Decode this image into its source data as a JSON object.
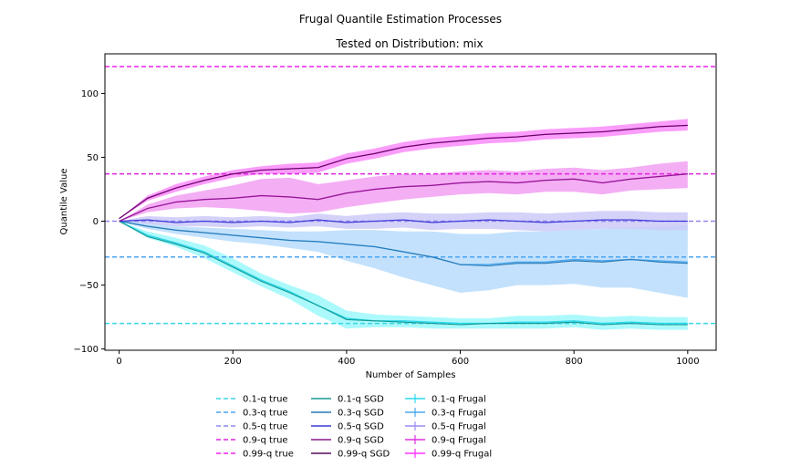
{
  "chart_data": {
    "type": "line",
    "title": "Frugal Quantile Estimation Processes",
    "subtitle": "Tested on Distribution: mix",
    "xlabel": "Number of Samples",
    "ylabel": "Quantile Value",
    "xlim": [
      -25,
      1050
    ],
    "ylim": [
      -101,
      131
    ],
    "xticks": [
      0,
      200,
      400,
      600,
      800,
      1000
    ],
    "yticks": [
      -100,
      -50,
      0,
      50,
      100
    ],
    "grid": false,
    "legend_position": "bottom-center",
    "true_lines": [
      {
        "name": "0.1-q true",
        "value": -80,
        "color": "#3ad6e6"
      },
      {
        "name": "0.3-q true",
        "value": -28,
        "color": "#4ba3ef"
      },
      {
        "name": "0.5-q true",
        "value": 0,
        "color": "#8f88ee"
      },
      {
        "name": "0.9-q true",
        "value": 37,
        "color": "#e022e0"
      },
      {
        "name": "0.99-q true",
        "value": 121,
        "color": "#ee22ee"
      }
    ],
    "sgd_series": [
      {
        "name": "0.1-q SGD",
        "color": "#159a94",
        "x": [
          0,
          50,
          100,
          150,
          200,
          250,
          300,
          350,
          400,
          450,
          500,
          550,
          600,
          650,
          700,
          750,
          800,
          850,
          900,
          950,
          1000
        ],
        "y": [
          0,
          -12,
          -18,
          -25,
          -36,
          -47,
          -56,
          -66,
          -77,
          -78,
          -79,
          -80,
          -81,
          -80,
          -80,
          -80,
          -79,
          -81,
          -80,
          -81,
          -81
        ]
      },
      {
        "name": "0.3-q SGD",
        "color": "#2a7ab5",
        "x": [
          0,
          50,
          100,
          150,
          200,
          250,
          300,
          350,
          400,
          450,
          500,
          550,
          600,
          650,
          700,
          750,
          800,
          850,
          900,
          950,
          1000
        ],
        "y": [
          0,
          -4,
          -7,
          -9,
          -11,
          -13,
          -15,
          -16,
          -18,
          -20,
          -24,
          -28,
          -34,
          -35,
          -33,
          -33,
          -31,
          -32,
          -30,
          -32,
          -33
        ]
      },
      {
        "name": "0.5-q SGD",
        "color": "#3a3ad8",
        "x": [
          0,
          50,
          100,
          150,
          200,
          250,
          300,
          350,
          400,
          450,
          500,
          550,
          600,
          650,
          700,
          750,
          800,
          850,
          900,
          950,
          1000
        ],
        "y": [
          0,
          1,
          -1,
          0,
          -1,
          0,
          -1,
          1,
          -1,
          0,
          1,
          -1,
          0,
          1,
          0,
          -1,
          0,
          1,
          1,
          0,
          0
        ]
      },
      {
        "name": "0.9-q SGD",
        "color": "#8a1a8a",
        "x": [
          0,
          50,
          100,
          150,
          200,
          250,
          300,
          350,
          400,
          450,
          500,
          550,
          600,
          650,
          700,
          750,
          800,
          850,
          900,
          950,
          1000
        ],
        "y": [
          0,
          10,
          15,
          17,
          18,
          20,
          19,
          17,
          22,
          25,
          27,
          28,
          30,
          31,
          30,
          32,
          33,
          30,
          33,
          35,
          37
        ]
      },
      {
        "name": "0.99-q SGD",
        "color": "#5a0a5a",
        "x": [
          0,
          50,
          100,
          150,
          200,
          250,
          300,
          350,
          400,
          450,
          500,
          550,
          600,
          650,
          700,
          750,
          800,
          850,
          900,
          950,
          1000
        ],
        "y": [
          2,
          18,
          26,
          32,
          37,
          40,
          41,
          42,
          49,
          53,
          58,
          61,
          63,
          65,
          66,
          68,
          69,
          70,
          72,
          74,
          75
        ]
      }
    ],
    "frugal_series": [
      {
        "name": "0.1-q Frugal",
        "color": "#2ad8ec",
        "band_color": "#9ef8fc",
        "x": [
          0,
          50,
          100,
          150,
          200,
          250,
          300,
          350,
          400,
          450,
          500,
          550,
          600,
          650,
          700,
          750,
          800,
          850,
          900,
          950,
          1000
        ],
        "y": [
          0,
          -11,
          -17,
          -24,
          -35,
          -46,
          -55,
          -66,
          -76,
          -78,
          -78,
          -79,
          -80,
          -80,
          -79,
          -79,
          -78,
          -80,
          -79,
          -80,
          -80
        ],
        "lower": [
          0,
          -13,
          -20,
          -29,
          -40,
          -51,
          -61,
          -74,
          -84,
          -83,
          -83,
          -84,
          -84,
          -84,
          -84,
          -84,
          -83,
          -85,
          -84,
          -85,
          -85
        ],
        "upper": [
          0,
          -8,
          -13,
          -19,
          -29,
          -41,
          -50,
          -58,
          -70,
          -73,
          -74,
          -75,
          -76,
          -76,
          -74,
          -74,
          -73,
          -75,
          -74,
          -75,
          -75
        ]
      },
      {
        "name": "0.3-q Frugal",
        "color": "#4aa8ee",
        "band_color": "#b8dcfb",
        "x": [
          0,
          50,
          100,
          150,
          200,
          250,
          300,
          350,
          400,
          450,
          500,
          550,
          600,
          650,
          700,
          750,
          800,
          850,
          900,
          950,
          1000
        ],
        "y": [
          0,
          -4,
          -7,
          -9,
          -11,
          -13,
          -15,
          -16,
          -18,
          -20,
          -24,
          -28,
          -34,
          -34,
          -32,
          -32,
          -30,
          -31,
          -30,
          -31,
          -32
        ],
        "lower": [
          0,
          -6,
          -10,
          -13,
          -16,
          -18,
          -21,
          -24,
          -31,
          -37,
          -44,
          -50,
          -56,
          -54,
          -50,
          -50,
          -49,
          -52,
          -52,
          -56,
          -60
        ],
        "upper": [
          0,
          -1,
          -4,
          -5,
          -6,
          -7,
          -8,
          -8,
          -7,
          -7,
          -8,
          -8,
          -10,
          -10,
          -8,
          -8,
          -7,
          -6,
          -5,
          -4,
          -3
        ]
      },
      {
        "name": "0.5-q Frugal",
        "color": "#9c8cf0",
        "band_color": "#cccaf8",
        "x": [
          0,
          50,
          100,
          150,
          200,
          250,
          300,
          350,
          400,
          450,
          500,
          550,
          600,
          650,
          700,
          750,
          800,
          850,
          900,
          950,
          1000
        ],
        "y": [
          0,
          1,
          -1,
          0,
          -1,
          0,
          -1,
          1,
          -1,
          0,
          1,
          -1,
          0,
          1,
          0,
          -1,
          0,
          1,
          1,
          0,
          0
        ],
        "lower": [
          0,
          -2,
          -4,
          -4,
          -5,
          -4,
          -5,
          -4,
          -6,
          -6,
          -5,
          -7,
          -6,
          -6,
          -7,
          -8,
          -7,
          -6,
          -6,
          -7,
          -7
        ],
        "upper": [
          0,
          4,
          3,
          4,
          3,
          4,
          3,
          6,
          4,
          6,
          7,
          6,
          6,
          7,
          7,
          6,
          7,
          8,
          8,
          7,
          7
        ]
      },
      {
        "name": "0.9-q Frugal",
        "color": "#e030e0",
        "band_color": "#f2a0f2",
        "x": [
          0,
          50,
          100,
          150,
          200,
          250,
          300,
          350,
          400,
          450,
          500,
          550,
          600,
          650,
          700,
          750,
          800,
          850,
          900,
          950,
          1000
        ],
        "y": [
          0,
          10,
          15,
          17,
          18,
          20,
          19,
          17,
          22,
          25,
          27,
          28,
          30,
          31,
          30,
          32,
          33,
          30,
          33,
          35,
          37
        ],
        "lower": [
          0,
          7,
          10,
          11,
          10,
          8,
          6,
          7,
          11,
          14,
          17,
          19,
          21,
          22,
          21,
          23,
          23,
          21,
          24,
          25,
          26
        ],
        "upper": [
          0,
          13,
          20,
          24,
          28,
          33,
          34,
          29,
          32,
          35,
          37,
          37,
          39,
          40,
          39,
          41,
          42,
          40,
          42,
          45,
          47
        ]
      },
      {
        "name": "0.99-q Frugal",
        "color": "#ff30ff",
        "band_color": "#fa8cfa",
        "x": [
          0,
          50,
          100,
          150,
          200,
          250,
          300,
          350,
          400,
          450,
          500,
          550,
          600,
          650,
          700,
          750,
          800,
          850,
          900,
          950,
          1000
        ],
        "y": [
          2,
          18,
          26,
          32,
          37,
          40,
          41,
          42,
          49,
          53,
          58,
          61,
          63,
          65,
          66,
          68,
          69,
          70,
          72,
          74,
          75
        ],
        "lower": [
          2,
          16,
          23,
          29,
          34,
          37,
          37,
          38,
          45,
          49,
          54,
          57,
          59,
          61,
          62,
          64,
          65,
          66,
          68,
          70,
          71
        ],
        "upper": [
          2,
          20,
          29,
          35,
          40,
          43,
          45,
          46,
          53,
          57,
          62,
          65,
          67,
          69,
          70,
          72,
          73,
          74,
          76,
          78,
          80
        ]
      }
    ]
  }
}
